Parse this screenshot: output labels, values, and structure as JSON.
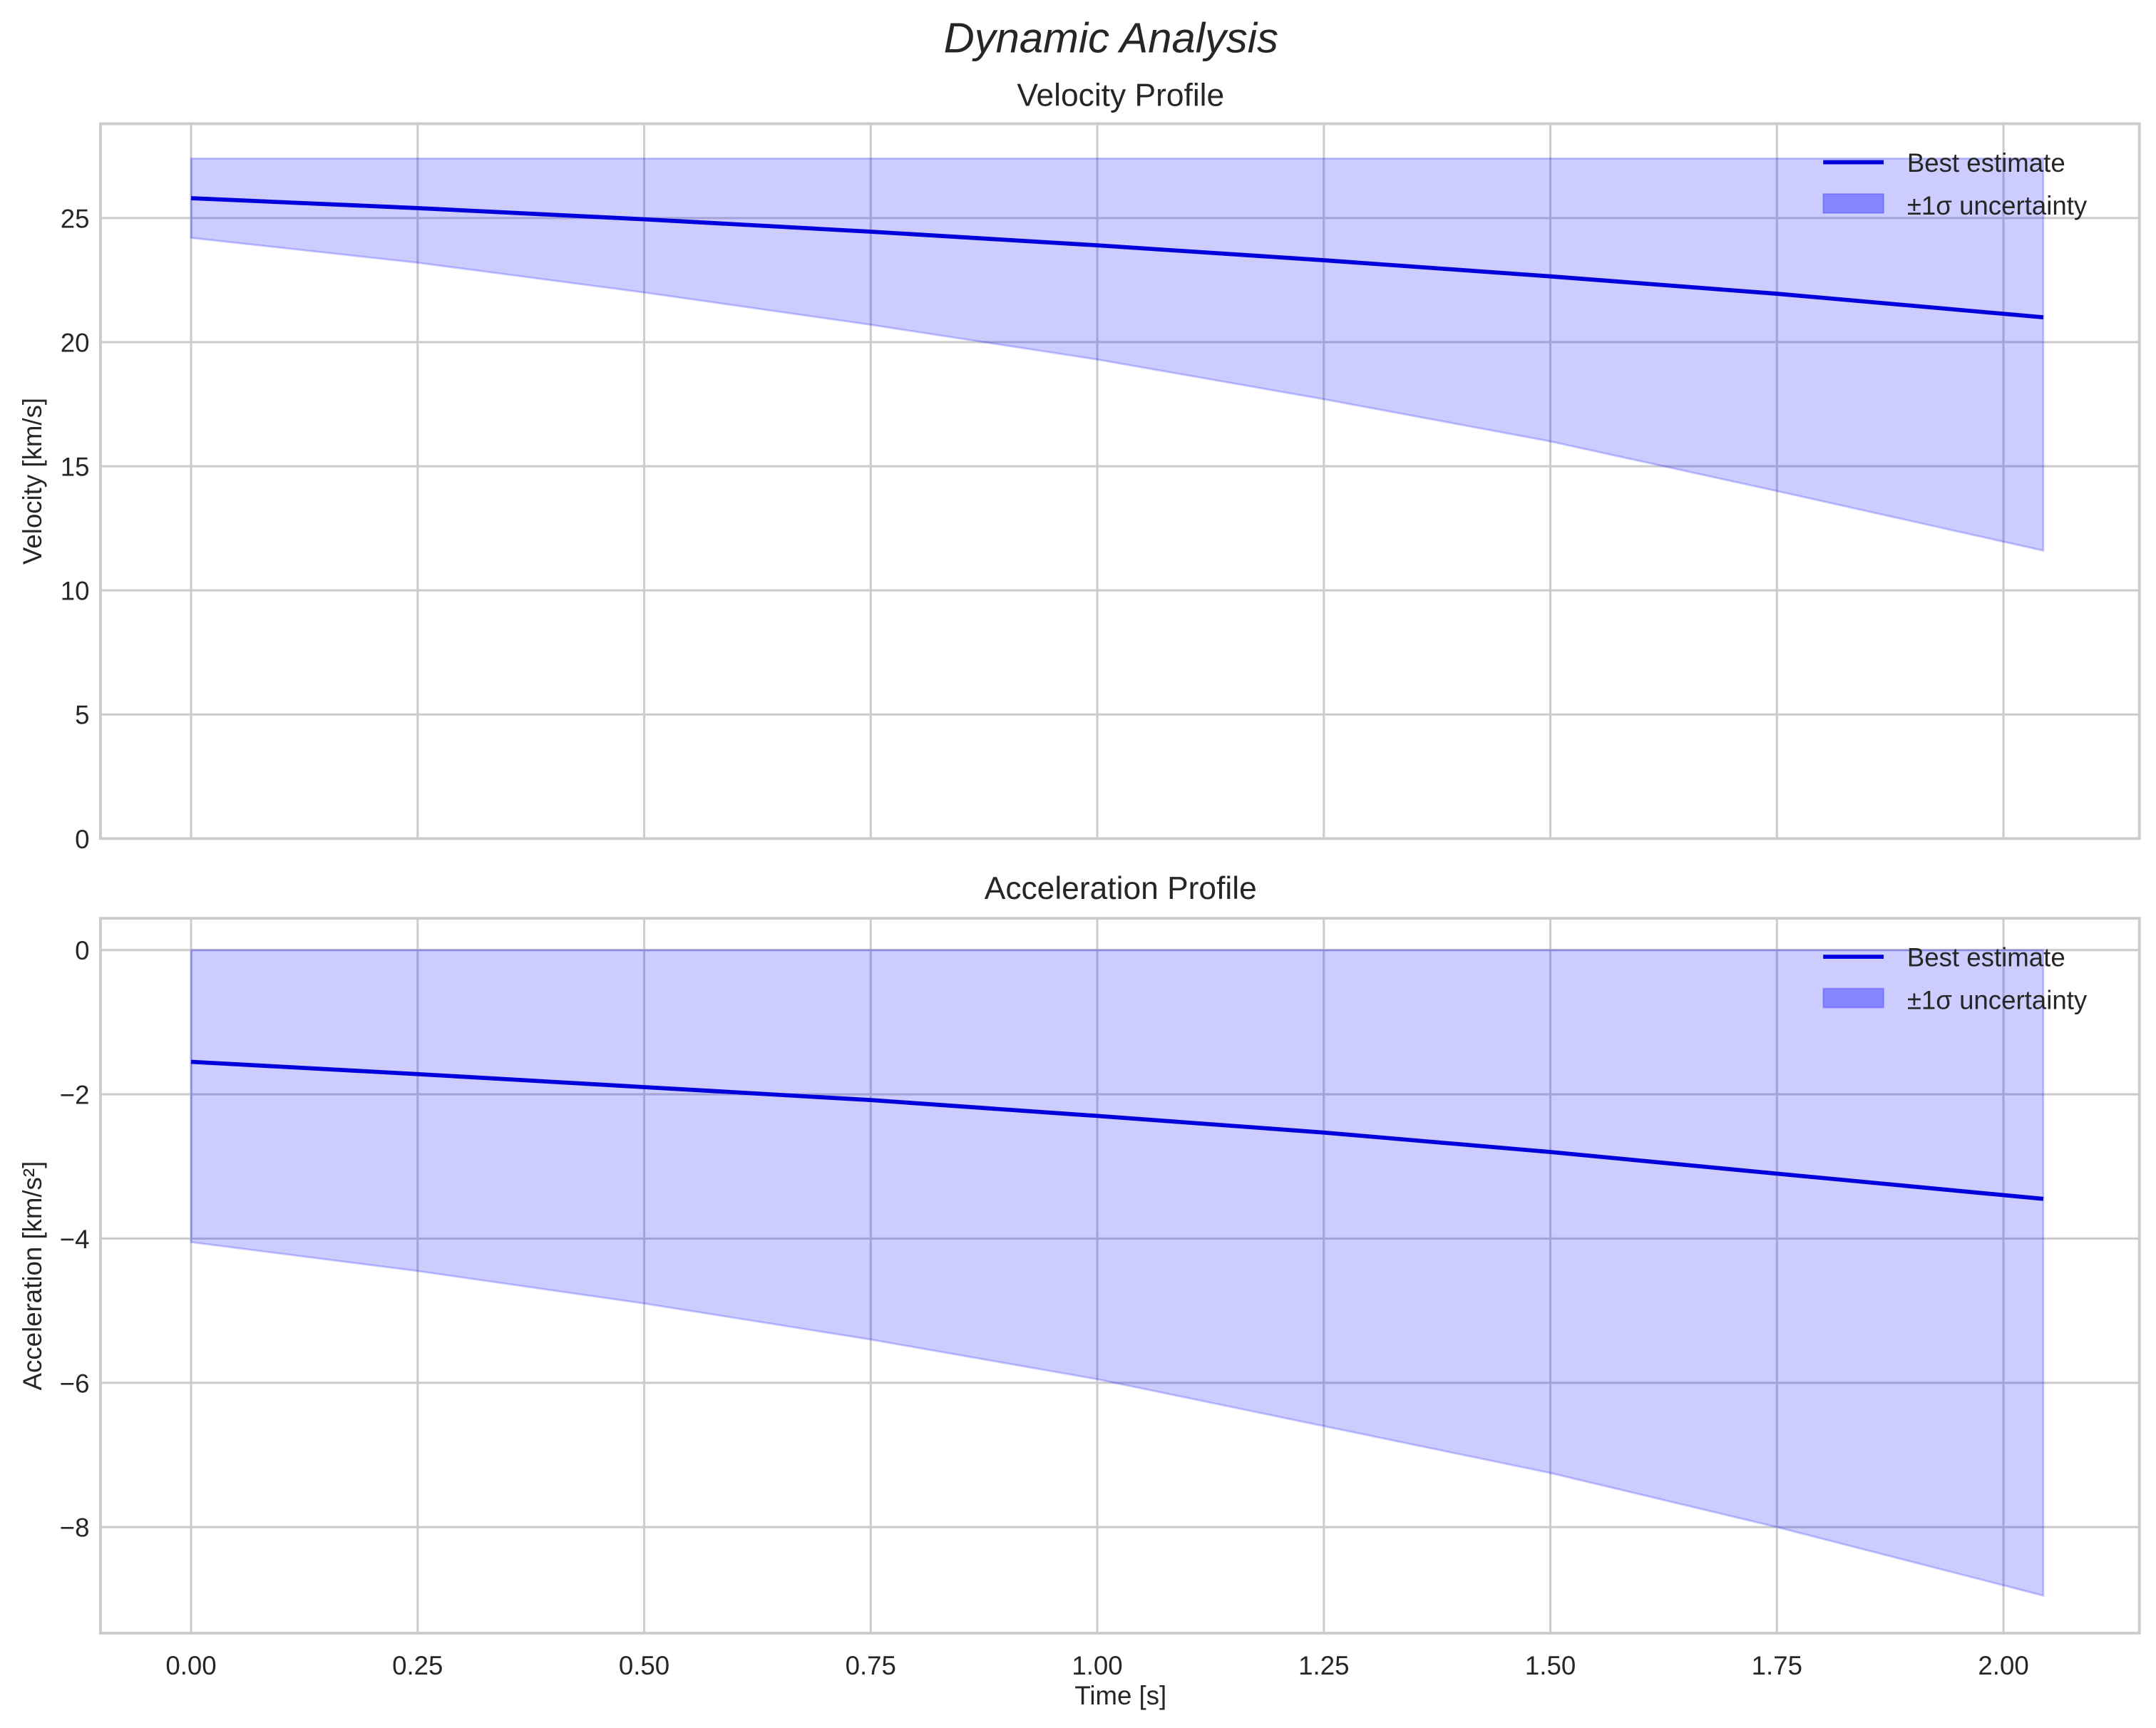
{
  "figure": {
    "suptitle": "Dynamic Analysis"
  },
  "chart_data": [
    {
      "type": "line",
      "title": "Velocity Profile",
      "xlabel": "Time [s]",
      "ylabel": "Velocity [km/s]",
      "xlim": [
        -0.1,
        2.15
      ],
      "ylim": [
        0,
        28.8
      ],
      "xticks": [
        "0.00",
        "0.25",
        "0.50",
        "0.75",
        "1.00",
        "1.25",
        "1.50",
        "1.75",
        "2.00"
      ],
      "yticks": [
        "0",
        "5",
        "10",
        "15",
        "20",
        "25"
      ],
      "grid": true,
      "legend_position": "upper right",
      "x": [
        0.0,
        0.25,
        0.5,
        0.75,
        1.0,
        1.25,
        1.5,
        1.75,
        2.044
      ],
      "series": [
        {
          "name": "Best estimate",
          "color": "#0000dd",
          "values": [
            25.8,
            25.4,
            24.95,
            24.45,
            23.9,
            23.3,
            22.65,
            21.95,
            21.0
          ]
        },
        {
          "name": "±1σ uncertainty (upper)",
          "color": "#0000ff",
          "values": [
            27.4,
            27.4,
            27.4,
            27.4,
            27.4,
            27.4,
            27.4,
            27.4,
            27.4
          ]
        },
        {
          "name": "±1σ uncertainty (lower)",
          "color": "#0000ff",
          "values": [
            24.2,
            23.2,
            22.0,
            20.7,
            19.3,
            17.7,
            16.0,
            14.0,
            11.6
          ]
        }
      ],
      "legend": [
        "Best estimate",
        "±1σ uncertainty"
      ]
    },
    {
      "type": "line",
      "title": "Acceleration Profile",
      "xlabel": "Time [s]",
      "ylabel": "Acceleration [km/s²]",
      "xlim": [
        -0.1,
        2.15
      ],
      "ylim": [
        -9.47,
        0.44
      ],
      "xticks": [
        "0.00",
        "0.25",
        "0.50",
        "0.75",
        "1.00",
        "1.25",
        "1.50",
        "1.75",
        "2.00"
      ],
      "yticks": [
        "0",
        "−2",
        "−4",
        "−6",
        "−8"
      ],
      "grid": true,
      "legend_position": "upper right",
      "x": [
        0.0,
        0.25,
        0.5,
        0.75,
        1.0,
        1.25,
        1.5,
        1.75,
        2.044
      ],
      "series": [
        {
          "name": "Best estimate",
          "color": "#0000dd",
          "values": [
            -1.55,
            -1.72,
            -1.9,
            -2.08,
            -2.3,
            -2.53,
            -2.8,
            -3.1,
            -3.45
          ]
        },
        {
          "name": "±1σ uncertainty (upper)",
          "color": "#0000ff",
          "values": [
            0,
            0,
            0,
            0,
            0,
            0,
            0,
            0,
            0
          ]
        },
        {
          "name": "±1σ uncertainty (lower)",
          "color": "#0000ff",
          "values": [
            -4.05,
            -4.45,
            -4.9,
            -5.4,
            -5.95,
            -6.6,
            -7.25,
            -8.0,
            -8.95
          ]
        }
      ],
      "legend": [
        "Best estimate",
        "±1σ uncertainty"
      ]
    }
  ]
}
